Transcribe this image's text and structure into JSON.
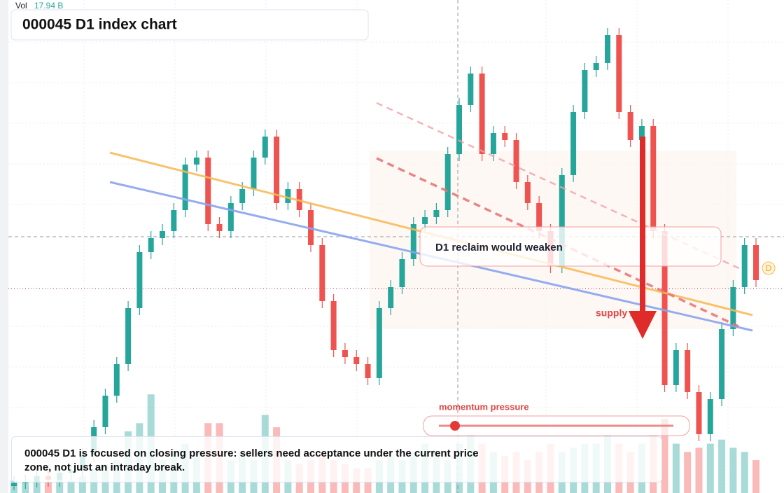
{
  "legend": {
    "label": "Vol",
    "value": "17.94 B"
  },
  "title": "000045 D1 index chart",
  "annotations": {
    "reclaim": "D1 reclaim would weaken",
    "supply": "supply zone",
    "momentum": "momentum pressure"
  },
  "caption": "000045 D1 is focused on closing pressure: sellers need acceptance under the current price zone, not just an intraday break.",
  "marker": "D",
  "chart_data": {
    "type": "candlestick",
    "ylim": [
      0,
      704
    ],
    "volume_lim": [
      0,
      60
    ],
    "up_color": "#26a69a",
    "down_color": "#ef5350",
    "open": [
      10,
      14,
      16,
      24,
      19,
      29,
      32,
      54,
      94,
      139,
      184,
      264,
      344,
      364,
      374,
      404,
      469,
      479,
      384,
      374,
      414,
      434,
      479,
      509,
      414,
      434,
      404,
      354,
      274,
      204,
      194,
      184,
      164,
      264,
      294,
      334,
      384,
      394,
      404,
      484,
      554,
      599,
      484,
      514,
      504,
      444,
      414,
      374,
      324,
      454,
      544,
      604,
      614,
      654,
      544,
      504,
      524,
      374,
      154,
      204,
      144,
      84,
      134,
      234,
      294,
      354
    ],
    "high": [
      24,
      26,
      34,
      34,
      39,
      42,
      64,
      104,
      149,
      194,
      274,
      354,
      374,
      384,
      414,
      479,
      489,
      489,
      394,
      424,
      444,
      489,
      519,
      519,
      444,
      444,
      414,
      364,
      284,
      214,
      204,
      194,
      274,
      304,
      344,
      394,
      404,
      414,
      494,
      564,
      609,
      609,
      524,
      524,
      514,
      454,
      424,
      384,
      464,
      554,
      614,
      624,
      664,
      664,
      554,
      534,
      534,
      384,
      214,
      214,
      154,
      144,
      244,
      304,
      364,
      364
    ],
    "low": [
      4,
      6,
      8,
      9,
      9,
      19,
      22,
      44,
      84,
      129,
      174,
      254,
      334,
      354,
      364,
      394,
      459,
      374,
      364,
      364,
      404,
      424,
      469,
      404,
      404,
      394,
      344,
      264,
      194,
      184,
      174,
      154,
      154,
      254,
      284,
      324,
      374,
      384,
      394,
      474,
      544,
      474,
      474,
      494,
      434,
      404,
      364,
      314,
      314,
      444,
      534,
      594,
      604,
      534,
      494,
      494,
      364,
      144,
      144,
      134,
      74,
      74,
      124,
      224,
      284,
      294
    ],
    "close": [
      14,
      16,
      24,
      19,
      29,
      32,
      54,
      94,
      139,
      184,
      264,
      344,
      364,
      374,
      404,
      469,
      479,
      384,
      374,
      414,
      434,
      479,
      509,
      414,
      434,
      404,
      354,
      274,
      204,
      194,
      184,
      164,
      264,
      294,
      334,
      384,
      394,
      404,
      484,
      554,
      599,
      484,
      514,
      504,
      444,
      414,
      374,
      324,
      454,
      544,
      604,
      614,
      654,
      544,
      504,
      524,
      374,
      154,
      204,
      144,
      84,
      134,
      234,
      294,
      354,
      304
    ],
    "volume": [
      1.5,
      1.2,
      1.4,
      1.3,
      1.6,
      1.5,
      2,
      3,
      3.5,
      4,
      7.5,
      8.5,
      12,
      4,
      5,
      6,
      5,
      8.5,
      8.5,
      4,
      5,
      4,
      9.5,
      8,
      4,
      3.5,
      4,
      5,
      4,
      3.5,
      3,
      3,
      4,
      4.5,
      4,
      5,
      6,
      5,
      4,
      6,
      7,
      6,
      5,
      4.5,
      5,
      4,
      5,
      6,
      5,
      5.5,
      6,
      6,
      7,
      6,
      5,
      6,
      7,
      9,
      6,
      5,
      5.5,
      6,
      6.5,
      5.5,
      5,
      4
    ]
  }
}
